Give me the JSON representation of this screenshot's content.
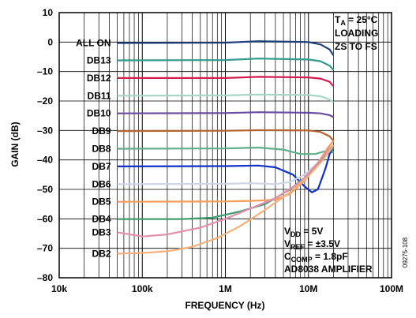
{
  "chart_data": {
    "type": "line",
    "xlabel": "FREQUENCY (Hz)",
    "ylabel": "GAIN (dB)",
    "x_scale": "log",
    "xlim": [
      10000,
      100000000
    ],
    "ylim": [
      -80,
      10
    ],
    "x_ticks": [
      10000,
      100000,
      1000000,
      10000000,
      100000000
    ],
    "x_tick_labels": [
      "10k",
      "100k",
      "1M",
      "10M",
      "100M"
    ],
    "y_ticks": [
      -80,
      -70,
      -60,
      -50,
      -40,
      -30,
      -20,
      -10,
      0,
      10
    ],
    "y_tick_labels": [
      "–80",
      "–70",
      "–60",
      "–50",
      "–40",
      "–30",
      "–20",
      "–10",
      "0",
      "10"
    ],
    "grid": true,
    "annotation_top_right": {
      "line1_main": "T",
      "line1_sub": "A",
      "line1_rest": " = 25°C",
      "line2": "LOADING",
      "line3": "ZS TO FS"
    },
    "annotation_bottom_right": {
      "vdd_main": "V",
      "vdd_sub": "DD",
      "vdd_rest": " = 5V",
      "vref_main": "V",
      "vref_sub": "REF",
      "vref_rest": " = ±3.5V",
      "ccomp_main": "C",
      "ccomp_sub": "COMP",
      "ccomp_rest": " = 1.8pF",
      "amp": "AD8038 AMPLIFIER"
    },
    "figure_id": "09275-108",
    "series": [
      {
        "name": "ALL ON",
        "color": "#1f3f7a",
        "points": [
          [
            50000,
            -0.3
          ],
          [
            1000000,
            -0.2
          ],
          [
            2500000,
            0.3
          ],
          [
            10000000,
            0
          ],
          [
            14000000,
            -0.8
          ],
          [
            18000000,
            -2.5
          ],
          [
            20000000,
            -4.5
          ]
        ]
      },
      {
        "name": "DB13",
        "color": "#2f9a8e",
        "points": [
          [
            50000,
            -6.2
          ],
          [
            1000000,
            -6.1
          ],
          [
            2500000,
            -5.6
          ],
          [
            10000000,
            -5.9
          ],
          [
            14000000,
            -6.5
          ],
          [
            18000000,
            -8
          ],
          [
            20000000,
            -9.5
          ]
        ]
      },
      {
        "name": "DB12",
        "color": "#d51c4e",
        "points": [
          [
            50000,
            -12.2
          ],
          [
            1000000,
            -12.2
          ],
          [
            2500000,
            -11.8
          ],
          [
            10000000,
            -12
          ],
          [
            14000000,
            -12.4
          ],
          [
            18000000,
            -13.5
          ],
          [
            20000000,
            -15
          ]
        ]
      },
      {
        "name": "DB11",
        "color": "#a9d6c4",
        "points": [
          [
            50000,
            -18.2
          ],
          [
            1000000,
            -18.1
          ],
          [
            2500000,
            -17.8
          ],
          [
            10000000,
            -18
          ],
          [
            14000000,
            -18.4
          ],
          [
            18000000,
            -19.5
          ],
          [
            20000000,
            -20.5
          ]
        ]
      },
      {
        "name": "DB10",
        "color": "#6a4ba0",
        "points": [
          [
            50000,
            -24.2
          ],
          [
            1000000,
            -24.1
          ],
          [
            2500000,
            -23.8
          ],
          [
            10000000,
            -24
          ],
          [
            14000000,
            -24.2
          ],
          [
            18000000,
            -24.8
          ],
          [
            20000000,
            -25.5
          ]
        ]
      },
      {
        "name": "DB9",
        "color": "#b5632f",
        "points": [
          [
            50000,
            -30.2
          ],
          [
            1000000,
            -30.1
          ],
          [
            2500000,
            -29.9
          ],
          [
            10000000,
            -30
          ],
          [
            14000000,
            -30.5
          ],
          [
            18000000,
            -32
          ],
          [
            20000000,
            -33.5
          ]
        ]
      },
      {
        "name": "DB8",
        "color": "#5fb08a",
        "points": [
          [
            50000,
            -36.2
          ],
          [
            1000000,
            -36.1
          ],
          [
            2500000,
            -35.8
          ],
          [
            5000000,
            -36.5
          ],
          [
            8000000,
            -38
          ],
          [
            12000000,
            -38
          ],
          [
            16000000,
            -37
          ],
          [
            20000000,
            -37.5
          ]
        ]
      },
      {
        "name": "DB7",
        "color": "#1030cc",
        "points": [
          [
            50000,
            -42.2
          ],
          [
            1000000,
            -42.1
          ],
          [
            2500000,
            -41.9
          ],
          [
            4000000,
            -42.5
          ],
          [
            6500000,
            -45
          ],
          [
            9000000,
            -49
          ],
          [
            11000000,
            -51
          ],
          [
            13000000,
            -50
          ],
          [
            16000000,
            -43
          ],
          [
            18000000,
            -38
          ],
          [
            20000000,
            -36
          ]
        ]
      },
      {
        "name": "DB6",
        "color": "#cfd3e6",
        "points": [
          [
            50000,
            -48.2
          ],
          [
            1000000,
            -48.1
          ],
          [
            2000000,
            -47.9
          ],
          [
            4000000,
            -48.2
          ],
          [
            6000000,
            -47.5
          ],
          [
            9000000,
            -45
          ],
          [
            13000000,
            -41
          ],
          [
            17000000,
            -37
          ],
          [
            20000000,
            -35
          ]
        ]
      },
      {
        "name": "DB5",
        "color": "#f39c5a",
        "points": [
          [
            50000,
            -54.2
          ],
          [
            1000000,
            -54.1
          ],
          [
            2000000,
            -53.9
          ],
          [
            4000000,
            -53.5
          ],
          [
            6000000,
            -51.5
          ],
          [
            9000000,
            -47
          ],
          [
            13000000,
            -41
          ],
          [
            17000000,
            -36
          ],
          [
            20000000,
            -33.5
          ]
        ]
      },
      {
        "name": "DB4",
        "color": "#3c9e6e",
        "points": [
          [
            50000,
            -60.1
          ],
          [
            300000,
            -60.1
          ],
          [
            700000,
            -59.6
          ],
          [
            1500000,
            -57.5
          ],
          [
            3000000,
            -55
          ],
          [
            6000000,
            -50
          ],
          [
            10000000,
            -45
          ],
          [
            15000000,
            -39.5
          ],
          [
            20000000,
            -36
          ]
        ]
      },
      {
        "name": "DB3",
        "color": "#e38fae",
        "points": [
          [
            50000,
            -64.6
          ],
          [
            100000,
            -66
          ],
          [
            200000,
            -65.3
          ],
          [
            500000,
            -63
          ],
          [
            1000000,
            -60
          ],
          [
            2000000,
            -56.5
          ],
          [
            4000000,
            -53
          ],
          [
            8000000,
            -47.5
          ],
          [
            13000000,
            -41
          ],
          [
            18000000,
            -36
          ],
          [
            20000000,
            -35
          ]
        ]
      },
      {
        "name": "DB2",
        "color": "#f7b07a",
        "points": [
          [
            50000,
            -71.8
          ],
          [
            100000,
            -71.6
          ],
          [
            200000,
            -71
          ],
          [
            400000,
            -69.5
          ],
          [
            800000,
            -66.5
          ],
          [
            1500000,
            -62.5
          ],
          [
            3000000,
            -57
          ],
          [
            6000000,
            -51
          ],
          [
            10000000,
            -45.5
          ],
          [
            15000000,
            -40
          ],
          [
            20000000,
            -35
          ]
        ]
      }
    ]
  }
}
